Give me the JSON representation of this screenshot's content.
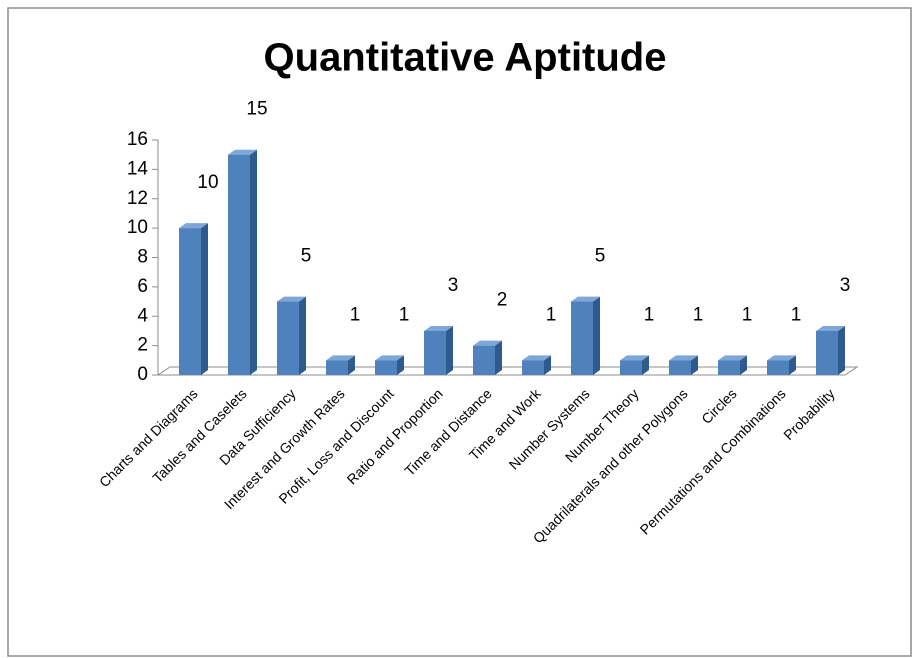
{
  "chart_data": {
    "type": "bar",
    "title": "Quantitative Aptitude",
    "categories": [
      "Charts and Diagrams",
      "Tables and Caselets",
      "Data Sufficiency",
      "Interest and Growth Rates",
      "Profit, Loss and Discount",
      "Ratio and Proportion",
      "Time and Distance",
      "Time and Work",
      "Number Systems",
      "Number Theory",
      "Quadrilaterals and other Polygons",
      "Circles",
      "Permutations and Combinations",
      "Probability"
    ],
    "values": [
      10,
      15,
      5,
      1,
      1,
      3,
      2,
      1,
      5,
      1,
      1,
      1,
      1,
      3
    ],
    "color": "#4f81bd",
    "ylim": [
      0,
      16
    ],
    "yticks": [
      0,
      2,
      4,
      6,
      8,
      10,
      12,
      14,
      16
    ],
    "grid": false
  }
}
